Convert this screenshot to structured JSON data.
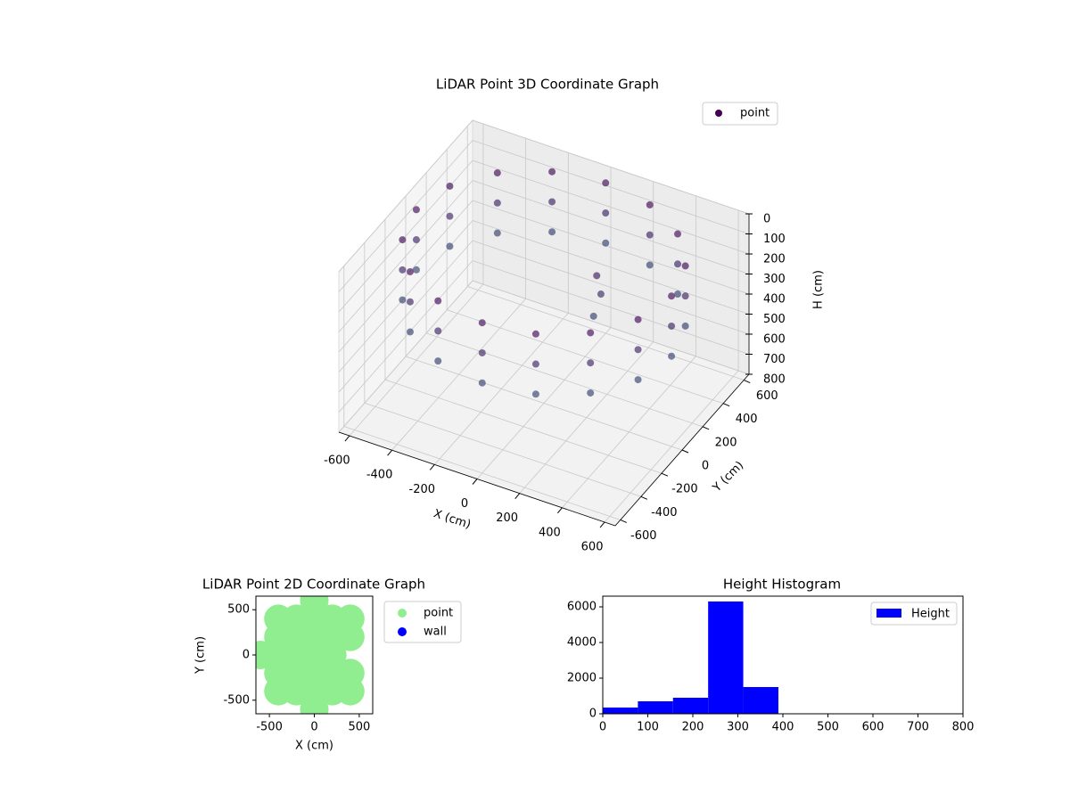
{
  "chart_data": [
    {
      "type": "scatter3d",
      "title": "LiDAR Point 3D Coordinate Graph",
      "xlabel": "X (cm)",
      "ylabel": "Y (cm)",
      "zlabel": "H (cm)",
      "xlim": [
        -650,
        650
      ],
      "ylim": [
        -650,
        650
      ],
      "zlim": [
        0,
        800
      ],
      "zinvert": true,
      "xticks": [
        -600,
        -400,
        -200,
        0,
        200,
        400,
        600
      ],
      "yticks": [
        -600,
        -400,
        -200,
        0,
        200,
        400,
        600
      ],
      "zticks": [
        0,
        100,
        200,
        300,
        400,
        500,
        600,
        700,
        800
      ],
      "grid": true,
      "legend": "upper right",
      "cmap": [
        "#440154",
        "#21918c"
      ],
      "series": [
        {
          "name": "point",
          "x": [
            600,
            554,
            424,
            230,
            0,
            -230,
            -424,
            -554,
            -600,
            -554,
            -424,
            -230,
            0,
            230,
            424,
            554,
            600,
            554,
            424,
            230,
            0,
            -230,
            -424,
            -554,
            -600,
            -554,
            -424,
            -230,
            0,
            230,
            424,
            554,
            600,
            554,
            424,
            230,
            0,
            -230,
            -424,
            -554,
            -600,
            -554,
            -424,
            -230,
            0,
            230,
            424,
            554,
            200,
            210,
            190
          ],
          "y": [
            0,
            230,
            424,
            554,
            600,
            554,
            424,
            230,
            0,
            -230,
            -424,
            -554,
            -600,
            -554,
            -424,
            -230,
            0,
            230,
            424,
            554,
            600,
            554,
            424,
            230,
            0,
            -230,
            -424,
            -554,
            -600,
            -554,
            -424,
            -230,
            0,
            230,
            424,
            554,
            600,
            554,
            424,
            230,
            0,
            -230,
            -424,
            -554,
            -600,
            -554,
            -424,
            -230,
            100,
            120,
            90
          ],
          "z": [
            50,
            50,
            50,
            50,
            50,
            50,
            50,
            50,
            50,
            50,
            50,
            50,
            50,
            50,
            50,
            50,
            200,
            200,
            200,
            200,
            200,
            200,
            200,
            200,
            200,
            200,
            200,
            200,
            200,
            200,
            200,
            200,
            350,
            350,
            350,
            350,
            350,
            350,
            350,
            350,
            350,
            350,
            350,
            350,
            350,
            350,
            350,
            350,
            150,
            250,
            350
          ]
        }
      ]
    },
    {
      "type": "scatter",
      "title": "LiDAR Point 2D Coordinate Graph",
      "xlabel": "X (cm)",
      "ylabel": "Y (cm)",
      "xlim": [
        -650,
        650
      ],
      "ylim": [
        -650,
        650
      ],
      "xticks": [
        -500,
        0,
        500
      ],
      "yticks": [
        -500,
        0,
        500
      ],
      "legend": "outside right",
      "series": [
        {
          "name": "point",
          "color": "#90ee90",
          "x": [
            0,
            -400,
            -200,
            0,
            200,
            400,
            -400,
            -200,
            0,
            200,
            400,
            -600,
            -400,
            -200,
            0,
            200,
            -400,
            -200,
            0,
            200,
            400,
            -400,
            -200,
            0,
            200,
            400,
            0
          ],
          "y": [
            600,
            400,
            400,
            400,
            400,
            400,
            200,
            200,
            200,
            200,
            200,
            0,
            0,
            0,
            0,
            0,
            -200,
            -200,
            -200,
            -200,
            -200,
            -400,
            -400,
            -400,
            -400,
            -400,
            -600
          ]
        },
        {
          "name": "wall",
          "color": "#0000ff",
          "x": [],
          "y": []
        }
      ]
    },
    {
      "type": "histogram",
      "title": "Height Histogram",
      "name": "Height",
      "color": "#0000ff",
      "bins": [
        0,
        78,
        156,
        234,
        312,
        390,
        468,
        546,
        624,
        702,
        780
      ],
      "values": [
        350,
        700,
        900,
        6300,
        1500,
        0,
        0,
        0,
        0,
        0
      ],
      "xlim": [
        0,
        800
      ],
      "ylim": [
        0,
        6600
      ],
      "xticks": [
        0,
        100,
        200,
        300,
        400,
        500,
        600,
        700,
        800
      ],
      "yticks": [
        0,
        2000,
        4000,
        6000
      ],
      "legend": "upper right"
    }
  ]
}
